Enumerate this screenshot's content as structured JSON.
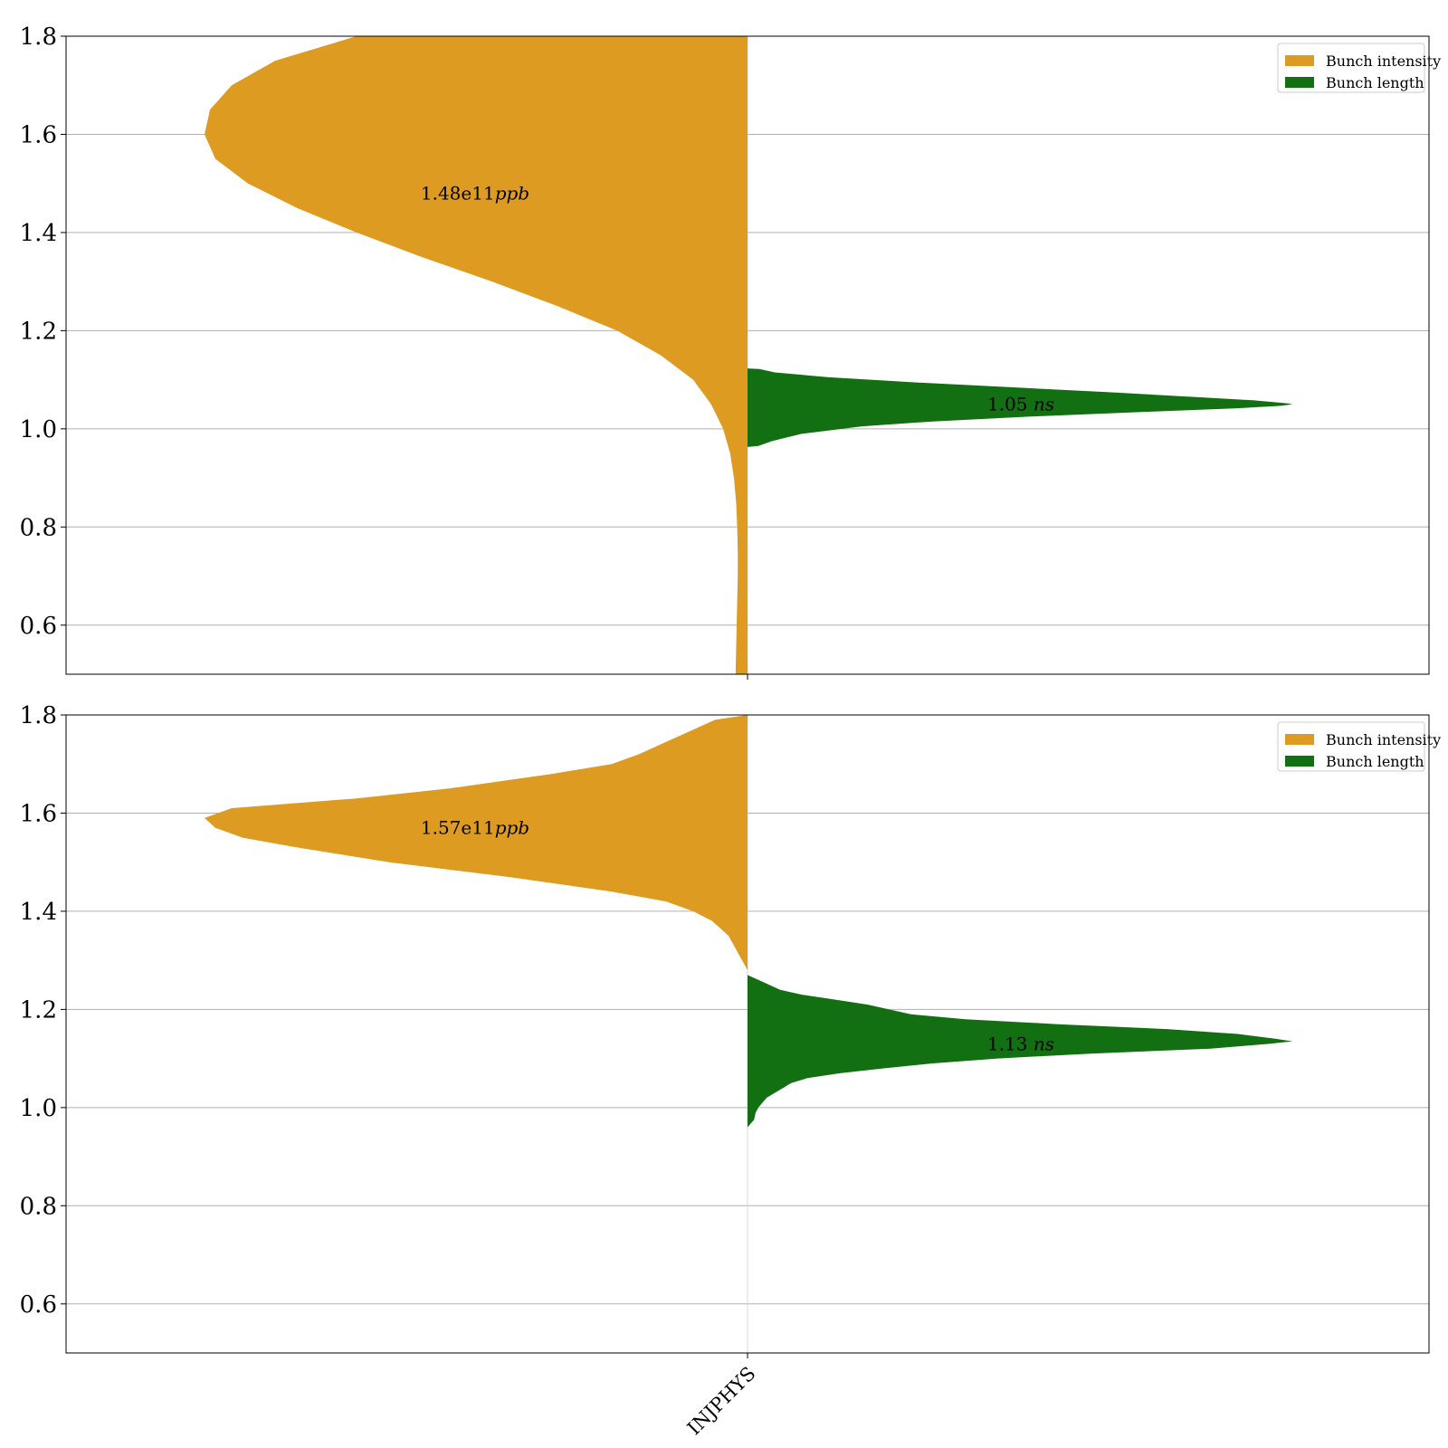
{
  "chart_data": [
    {
      "type": "violin",
      "category": "INJPHYS",
      "ylim": [
        0.5,
        1.8
      ],
      "yticks": [
        "0.6",
        "0.8",
        "1.0",
        "1.2",
        "1.4",
        "1.6",
        "1.8"
      ],
      "grid": true,
      "legend": {
        "placement": "top-right",
        "entries": [
          {
            "label": "Bunch intensity",
            "color": "#de9b22"
          },
          {
            "label": "Bunch length",
            "color": "#127012"
          }
        ]
      },
      "series": [
        {
          "name": "Bunch intensity",
          "side": "left",
          "color": "#de9b22",
          "annotation": {
            "value": "1.48e11",
            "unit": "ppb",
            "y": 1.48
          },
          "profile": [
            [
              1.8,
              0.72
            ],
            [
              1.75,
              0.87
            ],
            [
              1.7,
              0.95
            ],
            [
              1.65,
              0.99
            ],
            [
              1.6,
              1.0
            ],
            [
              1.55,
              0.98
            ],
            [
              1.5,
              0.92
            ],
            [
              1.45,
              0.83
            ],
            [
              1.4,
              0.72
            ],
            [
              1.35,
              0.6
            ],
            [
              1.3,
              0.47
            ],
            [
              1.25,
              0.35
            ],
            [
              1.2,
              0.24
            ],
            [
              1.15,
              0.16
            ],
            [
              1.1,
              0.1
            ],
            [
              1.05,
              0.067
            ],
            [
              1.0,
              0.045
            ],
            [
              0.95,
              0.032
            ],
            [
              0.9,
              0.025
            ],
            [
              0.85,
              0.021
            ],
            [
              0.8,
              0.019
            ],
            [
              0.75,
              0.018
            ],
            [
              0.7,
              0.018
            ],
            [
              0.65,
              0.019
            ],
            [
              0.6,
              0.02
            ],
            [
              0.5,
              0.022
            ]
          ]
        },
        {
          "name": "Bunch length",
          "side": "right",
          "color": "#127012",
          "annotation": {
            "value": "1.05",
            "unit": "ns",
            "y": 1.05
          },
          "profile": [
            [
              1.123,
              0.0
            ],
            [
              1.122,
              0.022
            ],
            [
              1.115,
              0.05
            ],
            [
              1.105,
              0.15
            ],
            [
              1.095,
              0.3
            ],
            [
              1.085,
              0.48
            ],
            [
              1.075,
              0.66
            ],
            [
              1.065,
              0.82
            ],
            [
              1.058,
              0.93
            ],
            [
              1.052,
              0.99
            ],
            [
              1.05,
              1.0
            ],
            [
              1.047,
              0.98
            ],
            [
              1.042,
              0.9
            ],
            [
              1.035,
              0.74
            ],
            [
              1.025,
              0.52
            ],
            [
              1.015,
              0.34
            ],
            [
              1.005,
              0.21
            ],
            [
              0.99,
              0.1
            ],
            [
              0.975,
              0.045
            ],
            [
              0.965,
              0.02
            ],
            [
              0.963,
              0.0
            ]
          ]
        }
      ]
    },
    {
      "type": "violin",
      "category": "INJPHYS",
      "ylim": [
        0.5,
        1.8
      ],
      "yticks": [
        "0.6",
        "0.8",
        "1.0",
        "1.2",
        "1.4",
        "1.6",
        "1.8"
      ],
      "grid": true,
      "legend": {
        "placement": "top-right",
        "entries": [
          {
            "label": "Bunch intensity",
            "color": "#de9b22"
          },
          {
            "label": "Bunch length",
            "color": "#127012"
          }
        ]
      },
      "series": [
        {
          "name": "Bunch intensity",
          "side": "left",
          "color": "#de9b22",
          "annotation": {
            "value": "1.57e11",
            "unit": "ppb",
            "y": 1.57
          },
          "profile": [
            [
              1.8,
              0.0
            ],
            [
              1.79,
              0.06
            ],
            [
              1.77,
              0.1
            ],
            [
              1.74,
              0.16
            ],
            [
              1.72,
              0.2
            ],
            [
              1.7,
              0.25
            ],
            [
              1.68,
              0.36
            ],
            [
              1.65,
              0.55
            ],
            [
              1.63,
              0.72
            ],
            [
              1.61,
              0.95
            ],
            [
              1.59,
              1.0
            ],
            [
              1.57,
              0.98
            ],
            [
              1.55,
              0.93
            ],
            [
              1.53,
              0.83
            ],
            [
              1.5,
              0.66
            ],
            [
              1.47,
              0.44
            ],
            [
              1.44,
              0.25
            ],
            [
              1.42,
              0.15
            ],
            [
              1.4,
              0.1
            ],
            [
              1.38,
              0.065
            ],
            [
              1.35,
              0.035
            ],
            [
              1.3,
              0.01
            ],
            [
              1.28,
              0.0
            ]
          ]
        },
        {
          "name": "Bunch length",
          "side": "right",
          "color": "#127012",
          "annotation": {
            "value": "1.13",
            "unit": "ns",
            "y": 1.13
          },
          "profile": [
            [
              1.27,
              0.0
            ],
            [
              1.26,
              0.02
            ],
            [
              1.25,
              0.04
            ],
            [
              1.24,
              0.06
            ],
            [
              1.23,
              0.1
            ],
            [
              1.22,
              0.16
            ],
            [
              1.21,
              0.22
            ],
            [
              1.2,
              0.26
            ],
            [
              1.19,
              0.3
            ],
            [
              1.18,
              0.4
            ],
            [
              1.17,
              0.57
            ],
            [
              1.16,
              0.77
            ],
            [
              1.15,
              0.9
            ],
            [
              1.14,
              0.97
            ],
            [
              1.135,
              1.0
            ],
            [
              1.13,
              0.96
            ],
            [
              1.12,
              0.85
            ],
            [
              1.11,
              0.63
            ],
            [
              1.1,
              0.46
            ],
            [
              1.09,
              0.34
            ],
            [
              1.08,
              0.25
            ],
            [
              1.07,
              0.17
            ],
            [
              1.06,
              0.11
            ],
            [
              1.05,
              0.08
            ],
            [
              1.04,
              0.065
            ],
            [
              1.02,
              0.035
            ],
            [
              1.0,
              0.02
            ],
            [
              0.99,
              0.015
            ],
            [
              0.975,
              0.012
            ],
            [
              0.96,
              0.0
            ]
          ]
        }
      ]
    }
  ]
}
